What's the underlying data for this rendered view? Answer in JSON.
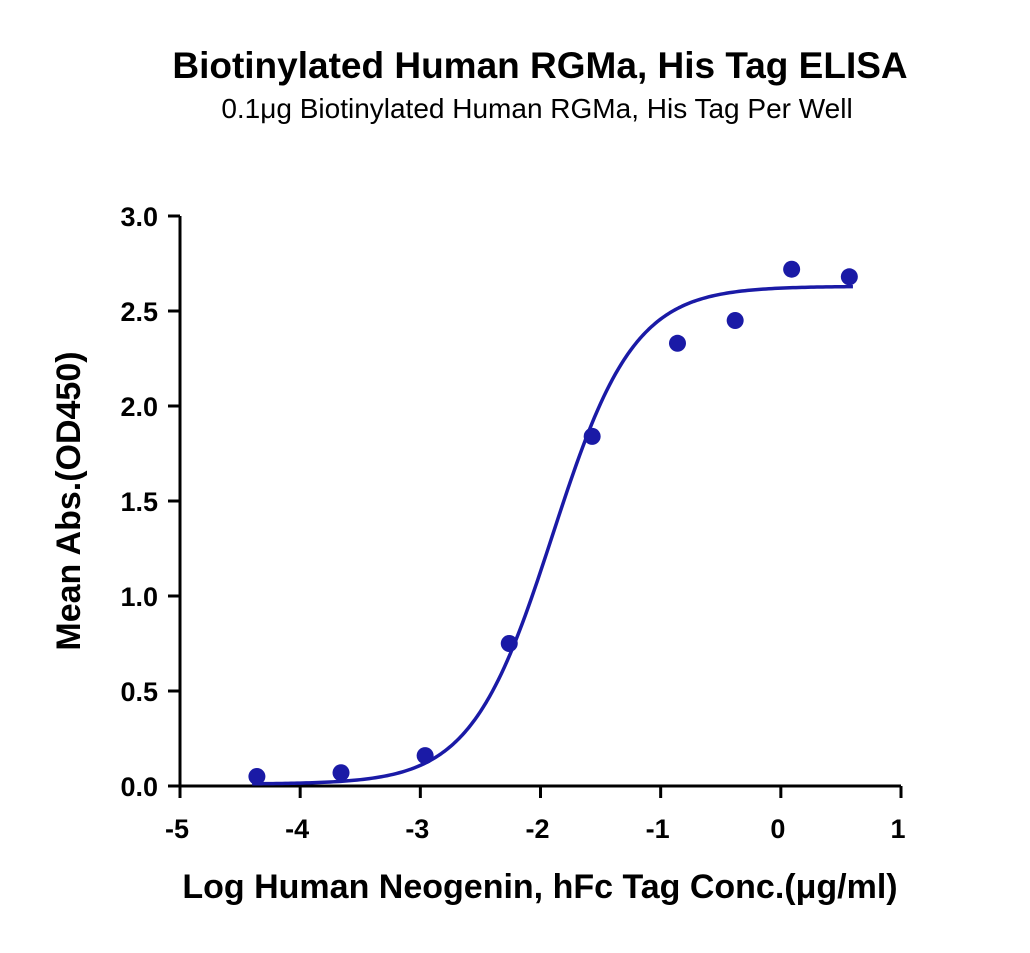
{
  "chart_data": {
    "type": "scatter",
    "title": "Biotinylated Human RGMa, His Tag ELISA",
    "subtitle": "0.1μg Biotinylated Human RGMa, His Tag Per Well",
    "xlabel": "Log Human Neogenin, hFc Tag Conc.(μg/ml)",
    "ylabel": "Mean Abs.(OD450)",
    "xlim": [
      -5,
      1
    ],
    "ylim": [
      0,
      3.0
    ],
    "x_ticks": [
      -5,
      -4,
      -3,
      -2,
      -1,
      0,
      1
    ],
    "x_tick_labels": [
      "-5",
      "-4",
      "-3",
      "-2",
      "-1",
      "0",
      "1"
    ],
    "y_ticks": [
      0,
      0.5,
      1.0,
      1.5,
      2.0,
      2.5,
      3.0
    ],
    "y_tick_labels": [
      "0.0",
      "0.5",
      "1.0",
      "1.5",
      "2.0",
      "2.5",
      "3.0"
    ],
    "grid": false,
    "color": "#1a1aa6",
    "points": [
      {
        "x": -4.36,
        "y": 0.05
      },
      {
        "x": -3.66,
        "y": 0.07
      },
      {
        "x": -2.96,
        "y": 0.16
      },
      {
        "x": -2.26,
        "y": 0.75
      },
      {
        "x": -1.57,
        "y": 1.84
      },
      {
        "x": -0.86,
        "y": 2.33
      },
      {
        "x": -0.38,
        "y": 2.45
      },
      {
        "x": 0.09,
        "y": 2.72
      },
      {
        "x": 0.57,
        "y": 2.68
      }
    ],
    "fit_curve": {
      "model": "4PL",
      "bottom": 0.01,
      "top": 2.63,
      "log_ec50": -1.9,
      "hill_slope": 1.28,
      "x_range": [
        -4.4,
        0.6
      ]
    }
  }
}
